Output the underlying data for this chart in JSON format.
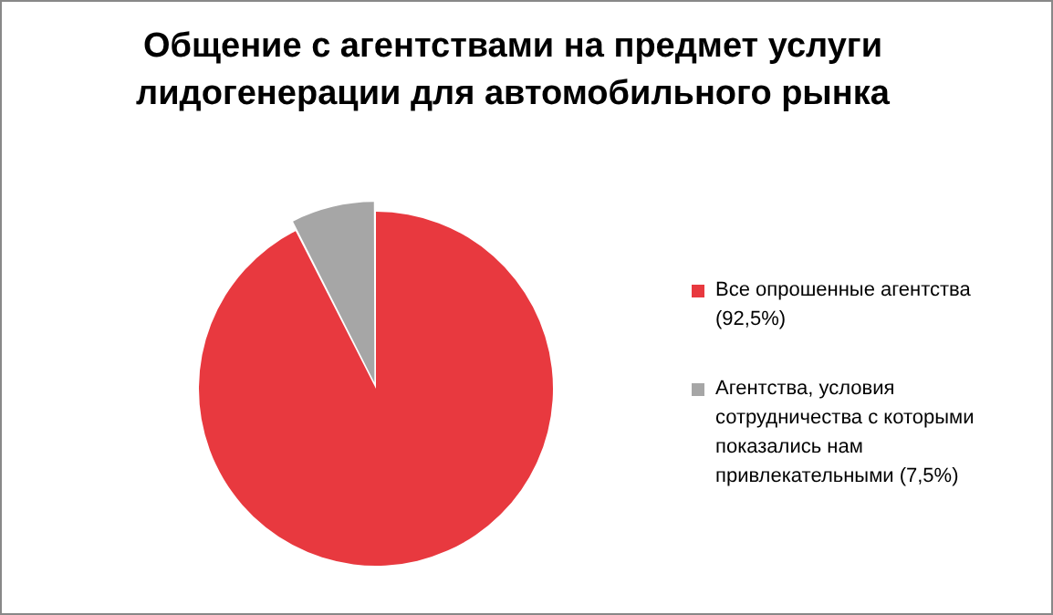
{
  "chart_data": {
    "type": "pie",
    "title": "Общение с агентствами на предмет услуги лидогенерации для автомобильного рынка",
    "categories": [
      "Все опрошенные агентства",
      "Агентства, условия сотрудничества с которыми показались нам привлекательными"
    ],
    "values": [
      92.5,
      7.5
    ],
    "colors": [
      "#e8393f",
      "#a6a6a6"
    ],
    "value_labels": [
      "(92,5%)",
      "(7,5%)"
    ],
    "legend": "right"
  }
}
